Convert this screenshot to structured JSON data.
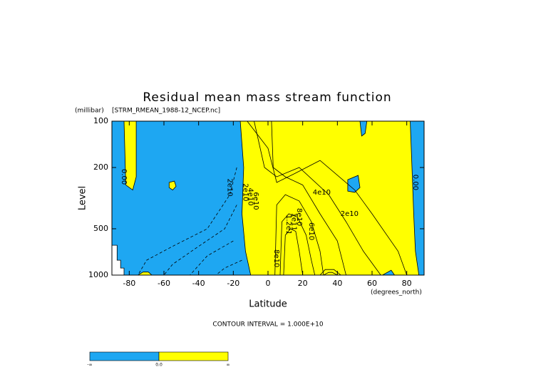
{
  "chart_data": {
    "type": "contour",
    "title": "Residual mean mass stream function",
    "subtitle": "[STRM_RMEAN_1988-12_NCEP.nc]",
    "y_unit": "(millibar)",
    "x_unit": "(degrees_north)",
    "x_label": "Latitude",
    "y_label": "Level",
    "contour_interval": "CONTOUR INTERVAL = 1.000E+10",
    "xlim": [
      -90,
      90
    ],
    "xticks": [
      -80,
      -60,
      -40,
      -20,
      0,
      20,
      40,
      60,
      80
    ],
    "ylim": [
      1000,
      100
    ],
    "yticks": [
      100,
      200,
      500,
      1000
    ],
    "ylog": true,
    "background": "#ffff00",
    "regions": [
      {
        "color": "#1ea7f2",
        "lat": [
          -90,
          -16,
          -14,
          -15,
          -13,
          -10,
          -90
        ],
        "level": [
          100,
          100,
          200,
          400,
          700,
          1000,
          1000
        ]
      },
      {
        "color": "#ffff00",
        "lat": [
          -83,
          -76,
          -76,
          -78,
          -82
        ],
        "level": [
          100,
          100,
          230,
          280,
          260
        ]
      },
      {
        "color": "#ffff00",
        "lat": [
          -57,
          -54,
          -53,
          -55,
          -57
        ],
        "level": [
          250,
          245,
          265,
          280,
          270
        ]
      },
      {
        "color": "#ffff00",
        "lat": [
          -75,
          -72,
          -69,
          -67
        ],
        "level": [
          1000,
          955,
          955,
          1000
        ]
      },
      {
        "color": "#ffffff",
        "lat": [
          -90,
          -87,
          -87,
          -85,
          -85,
          -83,
          -83,
          -90
        ],
        "level": [
          640,
          640,
          800,
          800,
          900,
          900,
          1000,
          1000
        ]
      },
      {
        "color": "#1ea7f2",
        "lat": [
          82,
          90,
          90,
          87,
          85,
          84,
          83
        ],
        "level": [
          100,
          100,
          1000,
          1000,
          700,
          400,
          200
        ]
      },
      {
        "color": "#1ea7f2",
        "lat": [
          46,
          52,
          53,
          50,
          46
        ],
        "level": [
          240,
          225,
          270,
          290,
          285
        ]
      },
      {
        "color": "#1ea7f2",
        "lat": [
          53,
          57,
          56,
          54
        ],
        "level": [
          100,
          100,
          120,
          125
        ]
      },
      {
        "color": "#1ea7f2",
        "lat": [
          66,
          71,
          73,
          70
        ],
        "level": [
          1000,
          930,
          1000,
          1000
        ]
      }
    ],
    "contours": [
      {
        "style": "solid",
        "lat": [
          -12,
          0,
          5,
          15,
          30,
          50,
          60,
          75,
          80
        ],
        "level": [
          100,
          150,
          250,
          220,
          180,
          280,
          400,
          700,
          1000
        ]
      },
      {
        "style": "solid",
        "lat": [
          -8,
          -2,
          5,
          18,
          35,
          45,
          55,
          65
        ],
        "level": [
          100,
          200,
          230,
          200,
          300,
          450,
          700,
          1000
        ]
      },
      {
        "style": "solid",
        "lat": [
          2,
          3,
          10,
          20,
          30,
          40,
          45
        ],
        "level": [
          100,
          200,
          230,
          260,
          400,
          600,
          1000
        ]
      },
      {
        "style": "solid",
        "lat": [
          4,
          5,
          10,
          18,
          25,
          30,
          32
        ],
        "level": [
          1000,
          350,
          300,
          330,
          450,
          700,
          1000
        ]
      },
      {
        "style": "solid",
        "lat": [
          7,
          8,
          12,
          17,
          22,
          25,
          27
        ],
        "level": [
          1000,
          450,
          400,
          420,
          550,
          800,
          1000
        ]
      },
      {
        "style": "solid",
        "lat": [
          9,
          10,
          13,
          16,
          18,
          20
        ],
        "level": [
          1000,
          550,
          500,
          520,
          700,
          1000
        ]
      },
      {
        "style": "solid",
        "lat": [
          30,
          33,
          38,
          42
        ],
        "level": [
          1000,
          920,
          920,
          1000
        ]
      },
      {
        "style": "solid",
        "lat": [
          32,
          35,
          37,
          40
        ],
        "level": [
          1000,
          960,
          960,
          1000
        ]
      },
      {
        "style": "dashed",
        "lat": [
          -18,
          -22,
          -35,
          -55,
          -70,
          -75
        ],
        "level": [
          200,
          300,
          500,
          650,
          800,
          1000
        ]
      },
      {
        "style": "dashed",
        "lat": [
          -18,
          -25,
          -40,
          -55,
          -60
        ],
        "level": [
          350,
          500,
          650,
          850,
          1000
        ]
      },
      {
        "style": "dashed",
        "lat": [
          -20,
          -35,
          -45
        ],
        "level": [
          600,
          750,
          1000
        ]
      },
      {
        "style": "dashed",
        "lat": [
          -15,
          -25,
          -30
        ],
        "level": [
          800,
          900,
          1000
        ]
      }
    ],
    "contour_labels": [
      {
        "text": "0.00",
        "lat": -83,
        "level": 230
      },
      {
        "text": "2e10",
        "lat": -22,
        "level": 270
      },
      {
        "text": "2e10",
        "lat": -13,
        "level": 290
      },
      {
        "text": "4e10",
        "lat": -10,
        "level": 310
      },
      {
        "text": "6e10",
        "lat": -7,
        "level": 330
      },
      {
        "text": "4e10",
        "lat": 31,
        "level": 290
      },
      {
        "text": "2e10",
        "lat": 47,
        "level": 400
      },
      {
        "text": "8e10",
        "lat": 18,
        "level": 420
      },
      {
        "text": "1e11",
        "lat": 15,
        "level": 450
      },
      {
        "text": "1.2e1",
        "lat": 12,
        "level": 470
      },
      {
        "text": "6e10",
        "lat": 25,
        "level": 520
      },
      {
        "text": "8e10",
        "lat": 5,
        "level": 780
      },
      {
        "text": "0.00",
        "lat": 85,
        "level": 250
      }
    ],
    "colorbar": {
      "colors": [
        "#1ea7f2",
        "#ffff00"
      ],
      "labels": [
        "-∞",
        "0.0",
        "∞"
      ]
    }
  }
}
